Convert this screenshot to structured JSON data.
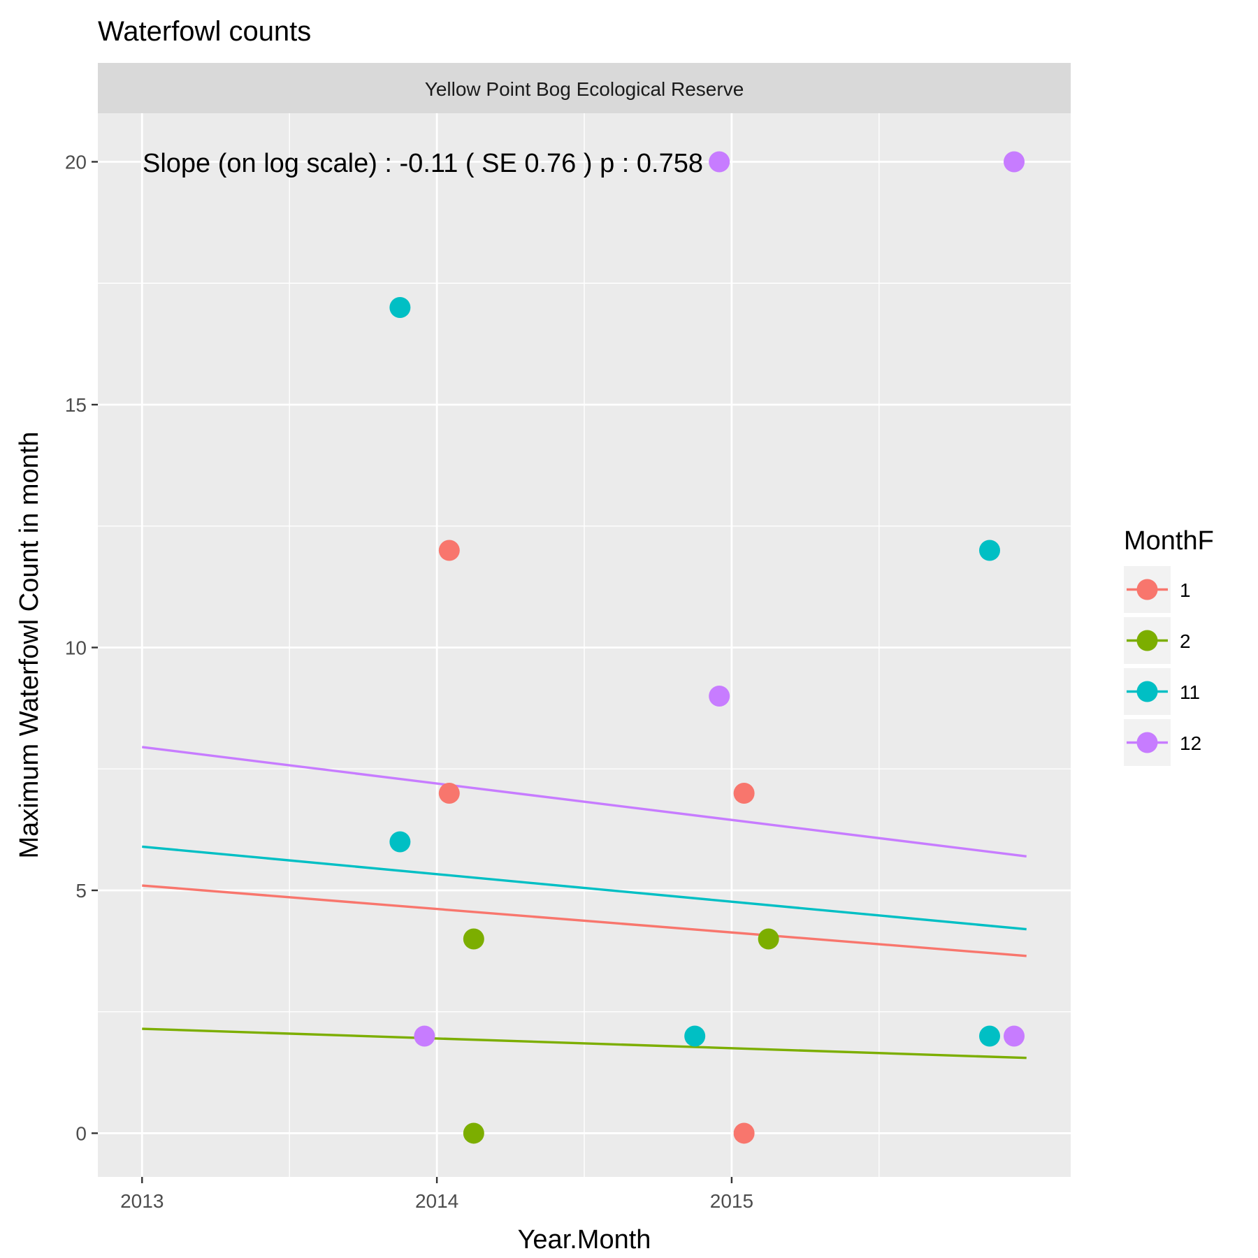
{
  "chart_data": {
    "type": "scatter",
    "title": "Waterfowl counts",
    "facet_label": "Yellow Point Bog Ecological Reserve",
    "xlabel": "Year.Month",
    "ylabel": "Maximum Waterfowl Count in month",
    "xlim": [
      2012.85,
      2016.15
    ],
    "ylim": [
      -0.9,
      21
    ],
    "x_ticks": [
      2013,
      2014,
      2015
    ],
    "y_ticks": [
      0,
      5,
      10,
      15,
      20
    ],
    "grid": true,
    "legend": {
      "title": "MonthF",
      "position": "right"
    },
    "annotation": "Slope (on log scale) :  -0.11  ( SE  0.76 )  p : 0.758",
    "series": [
      {
        "name": "1",
        "color": "#F8766D",
        "points": [
          [
            2014.042,
            12
          ],
          [
            2014.042,
            7
          ],
          [
            2015.042,
            7
          ],
          [
            2015.042,
            0
          ]
        ],
        "trend": [
          [
            2013.0,
            5.1
          ],
          [
            2016.0,
            3.65
          ]
        ]
      },
      {
        "name": "2",
        "color": "#7CAE00",
        "points": [
          [
            2014.125,
            4
          ],
          [
            2014.125,
            0
          ],
          [
            2015.125,
            4
          ]
        ],
        "trend": [
          [
            2013.0,
            2.15
          ],
          [
            2016.0,
            1.55
          ]
        ]
      },
      {
        "name": "11",
        "color": "#00BFC4",
        "points": [
          [
            2013.875,
            17
          ],
          [
            2013.875,
            6
          ],
          [
            2014.875,
            2
          ],
          [
            2015.875,
            12
          ],
          [
            2015.875,
            2
          ]
        ],
        "trend": [
          [
            2013.0,
            5.9
          ],
          [
            2016.0,
            4.2
          ]
        ]
      },
      {
        "name": "12",
        "color": "#C77CFF",
        "points": [
          [
            2013.958,
            2
          ],
          [
            2014.958,
            20
          ],
          [
            2014.958,
            9
          ],
          [
            2015.958,
            20
          ],
          [
            2015.958,
            2
          ]
        ],
        "trend": [
          [
            2013.0,
            7.95
          ],
          [
            2016.0,
            5.7
          ]
        ]
      }
    ]
  }
}
